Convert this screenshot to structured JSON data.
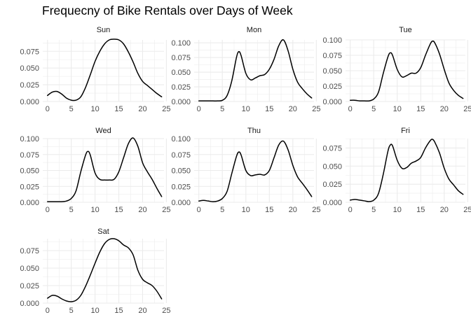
{
  "title": "Frequecny of Bike Rentals over Days of Week",
  "colors": {
    "grid": "#ebebeb",
    "line": "#000000",
    "text": "#4d4d4d",
    "strip": "#1a1a1a"
  },
  "chart_data": {
    "type": "line",
    "title": "Frequecny of Bike Rentals over Days of Week",
    "facets": [
      "Sun",
      "Mon",
      "Tue",
      "Wed",
      "Thu",
      "Fri",
      "Sat"
    ],
    "xlim": [
      -1,
      24.5
    ],
    "xticks": [
      0,
      5,
      10,
      15,
      20,
      25
    ],
    "grid": true,
    "panels": [
      {
        "label": "Sun",
        "ylim": [
          0,
          0.092
        ],
        "yticks": [
          "0.000",
          "0.025",
          "0.050",
          "0.075"
        ],
        "x": [
          0,
          1,
          2,
          3,
          4,
          5,
          6,
          7,
          8,
          9,
          10,
          11,
          12,
          13,
          14,
          15,
          16,
          17,
          18,
          19,
          20,
          21,
          22,
          23,
          24
        ],
        "y": [
          0.009,
          0.014,
          0.015,
          0.011,
          0.005,
          0.002,
          0.002,
          0.007,
          0.021,
          0.04,
          0.06,
          0.075,
          0.086,
          0.092,
          0.093,
          0.092,
          0.086,
          0.074,
          0.059,
          0.042,
          0.03,
          0.024,
          0.018,
          0.012,
          0.007
        ]
      },
      {
        "label": "Mon",
        "ylim": [
          0,
          0.105
        ],
        "yticks": [
          "0.000",
          "0.025",
          "0.050",
          "0.075",
          "0.100"
        ],
        "x": [
          0,
          1,
          2,
          3,
          4,
          5,
          6,
          7,
          8,
          8.5,
          9,
          10,
          11,
          12,
          13,
          14,
          15,
          16,
          17,
          18,
          19,
          20,
          21,
          22,
          23,
          24
        ],
        "y": [
          0.001,
          0.001,
          0.001,
          0.001,
          0.001,
          0.002,
          0.01,
          0.035,
          0.075,
          0.085,
          0.078,
          0.048,
          0.037,
          0.04,
          0.044,
          0.046,
          0.055,
          0.072,
          0.095,
          0.105,
          0.086,
          0.055,
          0.033,
          0.022,
          0.013,
          0.006
        ]
      },
      {
        "label": "Tue",
        "ylim": [
          0,
          0.1
        ],
        "yticks": [
          "0.000",
          "0.025",
          "0.050",
          "0.075",
          "0.100"
        ],
        "x": [
          0,
          1,
          2,
          3,
          4,
          5,
          6,
          7,
          8,
          8.5,
          9,
          10,
          11,
          12,
          13,
          14,
          15,
          16,
          17,
          17.5,
          18,
          19,
          20,
          21,
          22,
          23,
          24
        ],
        "y": [
          0.002,
          0.002,
          0.001,
          0.001,
          0.001,
          0.004,
          0.015,
          0.045,
          0.072,
          0.079,
          0.075,
          0.052,
          0.04,
          0.042,
          0.046,
          0.046,
          0.055,
          0.075,
          0.093,
          0.098,
          0.095,
          0.077,
          0.052,
          0.03,
          0.018,
          0.01,
          0.005
        ]
      },
      {
        "label": "Wed",
        "ylim": [
          0,
          0.1
        ],
        "yticks": [
          "0.000",
          "0.025",
          "0.050",
          "0.075",
          "0.100"
        ],
        "x": [
          0,
          1,
          2,
          3,
          4,
          5,
          6,
          7,
          8,
          8.5,
          9,
          10,
          11,
          12,
          13,
          14,
          15,
          16,
          17,
          18,
          19,
          20,
          21,
          22,
          23,
          24
        ],
        "y": [
          0.001,
          0.001,
          0.001,
          0.001,
          0.002,
          0.006,
          0.018,
          0.048,
          0.074,
          0.08,
          0.074,
          0.046,
          0.036,
          0.035,
          0.035,
          0.036,
          0.048,
          0.07,
          0.092,
          0.101,
          0.088,
          0.062,
          0.048,
          0.036,
          0.022,
          0.009
        ]
      },
      {
        "label": "Thu",
        "ylim": [
          0,
          0.1
        ],
        "yticks": [
          "0.000",
          "0.025",
          "0.050",
          "0.075",
          "0.100"
        ],
        "x": [
          0,
          1,
          2,
          3,
          4,
          5,
          6,
          7,
          8,
          8.5,
          9,
          10,
          11,
          12,
          13,
          14,
          15,
          16,
          17,
          18,
          19,
          20,
          21,
          22,
          23,
          24
        ],
        "y": [
          0.002,
          0.003,
          0.002,
          0.001,
          0.002,
          0.006,
          0.017,
          0.045,
          0.072,
          0.079,
          0.074,
          0.05,
          0.042,
          0.043,
          0.044,
          0.043,
          0.05,
          0.07,
          0.09,
          0.096,
          0.082,
          0.058,
          0.04,
          0.03,
          0.02,
          0.009
        ]
      },
      {
        "label": "Fri",
        "ylim": [
          0,
          0.088
        ],
        "yticks": [
          "0.000",
          "0.025",
          "0.050",
          "0.075"
        ],
        "x": [
          0,
          1,
          2,
          3,
          4,
          5,
          6,
          7,
          8,
          8.5,
          9,
          10,
          11,
          12,
          13,
          14,
          15,
          16,
          17,
          17.5,
          18,
          19,
          20,
          21,
          22,
          23,
          24
        ],
        "y": [
          0.003,
          0.004,
          0.003,
          0.002,
          0.001,
          0.003,
          0.012,
          0.038,
          0.07,
          0.079,
          0.078,
          0.058,
          0.047,
          0.048,
          0.054,
          0.057,
          0.062,
          0.075,
          0.085,
          0.087,
          0.083,
          0.068,
          0.047,
          0.032,
          0.024,
          0.016,
          0.011
        ]
      },
      {
        "label": "Sat",
        "ylim": [
          0,
          0.092
        ],
        "yticks": [
          "0.000",
          "0.025",
          "0.050",
          "0.075"
        ],
        "x": [
          0,
          1,
          2,
          3,
          4,
          5,
          6,
          7,
          8,
          9,
          10,
          11,
          12,
          13,
          14,
          15,
          16,
          17,
          18,
          19,
          20,
          21,
          22,
          23,
          24
        ],
        "y": [
          0.007,
          0.011,
          0.01,
          0.006,
          0.003,
          0.002,
          0.004,
          0.011,
          0.024,
          0.04,
          0.057,
          0.073,
          0.085,
          0.091,
          0.092,
          0.089,
          0.083,
          0.079,
          0.069,
          0.047,
          0.034,
          0.029,
          0.025,
          0.017,
          0.006
        ]
      }
    ]
  }
}
